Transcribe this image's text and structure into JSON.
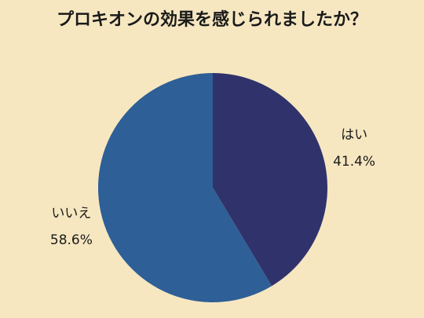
{
  "chart_data": {
    "type": "pie",
    "title": "プロキオンの効果を感じられましたか？",
    "categories": [
      "はい",
      "いいえ"
    ],
    "values": [
      41.4,
      58.6
    ],
    "value_labels": [
      "41.4%",
      "58.6%"
    ],
    "colors": [
      "#30336b",
      "#2e5f96"
    ]
  }
}
